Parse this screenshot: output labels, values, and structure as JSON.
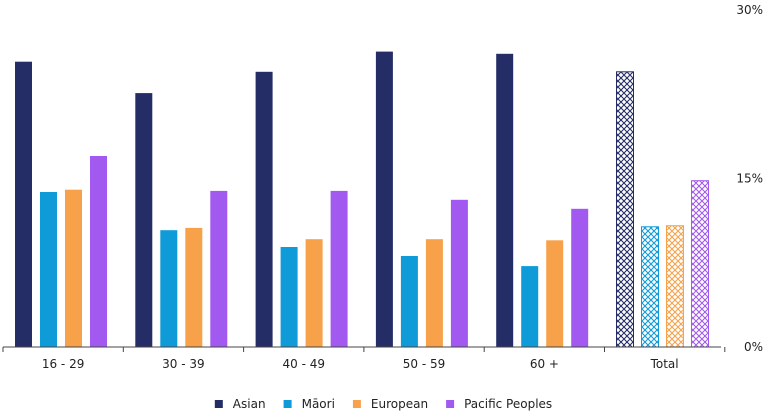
{
  "chart_data": {
    "type": "bar",
    "title": "",
    "xlabel": "",
    "ylabel": "",
    "categories": [
      "16 - 29",
      "30 - 39",
      "40 - 49",
      "50 - 59",
      "60 +",
      "Total"
    ],
    "series": [
      {
        "name": "Asian",
        "color": "#252d66",
        "values": [
          25.4,
          22.6,
          24.5,
          26.3,
          26.1,
          24.5
        ]
      },
      {
        "name": "Māori",
        "color": "#0f9ad8",
        "values": [
          13.8,
          10.4,
          8.9,
          8.1,
          7.2,
          10.7
        ]
      },
      {
        "name": "European",
        "color": "#f7a24a",
        "values": [
          14.0,
          10.6,
          9.6,
          9.6,
          9.5,
          10.8
        ]
      },
      {
        "name": "Pacific Peoples",
        "color": "#a259ef",
        "values": [
          17.0,
          13.9,
          13.9,
          13.1,
          12.3,
          14.8
        ]
      }
    ],
    "patterned_categories": [
      "Total"
    ],
    "ylim": [
      0,
      30
    ],
    "yticks": [
      0,
      15,
      30
    ],
    "ytick_labels": [
      "0%",
      "15%",
      "30%"
    ],
    "y_axis_position": "right",
    "grid": false,
    "legend_position": "bottom-center"
  }
}
